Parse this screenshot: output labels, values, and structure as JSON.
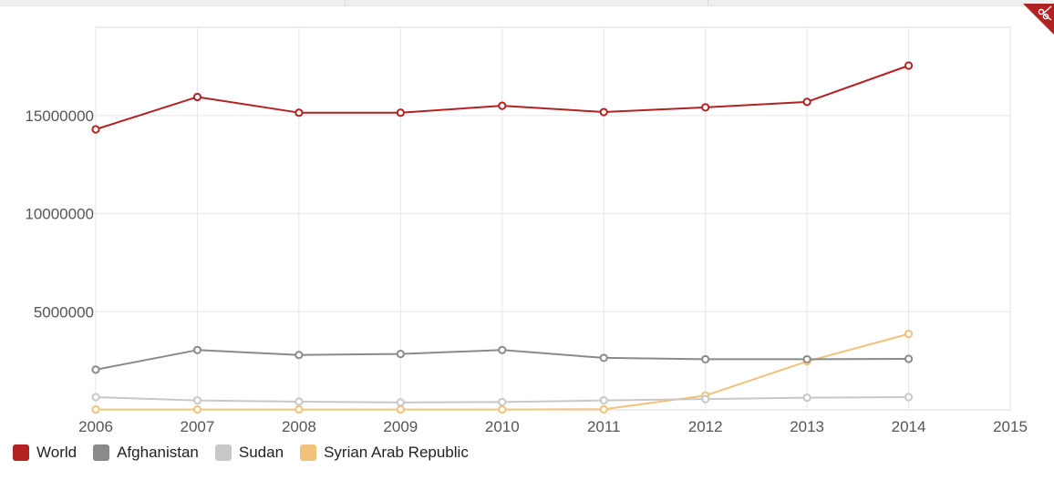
{
  "chart_data": {
    "type": "line",
    "x": [
      2006,
      2007,
      2008,
      2009,
      2010,
      2011,
      2012,
      2013,
      2014
    ],
    "xlim": [
      2006,
      2015
    ],
    "xticks": [
      "2006",
      "2007",
      "2008",
      "2009",
      "2010",
      "2011",
      "2012",
      "2013",
      "2014",
      "2015"
    ],
    "ylim": [
      0,
      19500000
    ],
    "yticks": [
      5000000,
      10000000,
      15000000
    ],
    "ytick_labels": [
      "5000000",
      "10000000",
      "15000000"
    ],
    "grid": true,
    "legend_position": "bottom-left",
    "series": [
      {
        "name": "World",
        "color": "#b22222",
        "values": [
          14300000,
          15950000,
          15150000,
          15150000,
          15500000,
          15180000,
          15420000,
          15700000,
          17550000
        ]
      },
      {
        "name": "Afghanistan",
        "color": "#8a8a8a",
        "values": [
          2050000,
          3050000,
          2800000,
          2850000,
          3050000,
          2650000,
          2580000,
          2580000,
          2600000
        ]
      },
      {
        "name": "Sudan",
        "color": "#c8c8c8",
        "values": [
          650000,
          480000,
          420000,
          380000,
          400000,
          480000,
          550000,
          620000,
          650000
        ]
      },
      {
        "name": "Syrian Arab Republic",
        "color": "#f0c27a",
        "values": [
          20000,
          20000,
          20000,
          20000,
          20000,
          30000,
          730000,
          2470000,
          3870000
        ]
      }
    ]
  },
  "legend": {
    "items": [
      {
        "label": "World",
        "color": "#b22222"
      },
      {
        "label": "Afghanistan",
        "color": "#8a8a8a"
      },
      {
        "label": "Sudan",
        "color": "#c8c8c8"
      },
      {
        "label": "Syrian Arab Republic",
        "color": "#f0c27a"
      }
    ]
  },
  "corner_tab": {
    "icon": "scissors-icon",
    "color": "#b22222"
  }
}
